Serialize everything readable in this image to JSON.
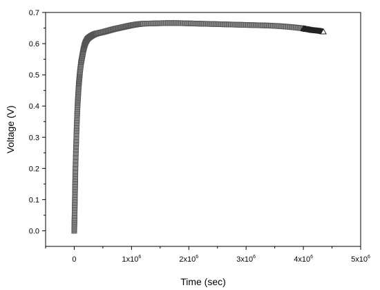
{
  "chart_data": {
    "type": "scatter",
    "xlabel": "Time (sec)",
    "ylabel": "Voltage (V)",
    "xlim": [
      -500000,
      5000000
    ],
    "ylim": [
      -0.05,
      0.7
    ],
    "x_ticks": [
      {
        "value": 0,
        "base": "0",
        "exp": ""
      },
      {
        "value": 1000000,
        "base": "1x10",
        "exp": "6"
      },
      {
        "value": 2000000,
        "base": "2x10",
        "exp": "6"
      },
      {
        "value": 3000000,
        "base": "3x10",
        "exp": "6"
      },
      {
        "value": 4000000,
        "base": "4x10",
        "exp": "6"
      },
      {
        "value": 5000000,
        "base": "5x10",
        "exp": "6"
      }
    ],
    "y_ticks": [
      {
        "value": 0.0,
        "label": "0.0"
      },
      {
        "value": 0.1,
        "label": "0.1"
      },
      {
        "value": 0.2,
        "label": "0.2"
      },
      {
        "value": 0.3,
        "label": "0.3"
      },
      {
        "value": 0.4,
        "label": "0.4"
      },
      {
        "value": 0.5,
        "label": "0.5"
      },
      {
        "value": 0.6,
        "label": "0.6"
      },
      {
        "value": 0.7,
        "label": "0.7"
      }
    ],
    "grid": false,
    "legend": "none",
    "marker_color": "#555555",
    "series": [
      {
        "marker": "square",
        "x": [
          0,
          5000,
          10000,
          15000,
          20000,
          30000,
          40000,
          50000,
          60000,
          70000,
          80000,
          90000,
          100000,
          120000,
          140000,
          160000,
          180000,
          200000,
          230000,
          260000,
          300000,
          350000,
          400000,
          500000,
          600000,
          700000,
          800000,
          900000,
          1000000,
          1100000,
          1200000,
          1400000,
          1600000,
          1800000,
          2000000,
          2200000,
          2400000,
          2600000,
          2800000,
          3000000,
          3200000,
          3400000,
          3600000,
          3800000,
          4000000
        ],
        "y": [
          0.0,
          0.04,
          0.09,
          0.14,
          0.19,
          0.26,
          0.32,
          0.37,
          0.41,
          0.44,
          0.47,
          0.49,
          0.51,
          0.54,
          0.56,
          0.58,
          0.595,
          0.605,
          0.615,
          0.62,
          0.625,
          0.63,
          0.633,
          0.637,
          0.642,
          0.647,
          0.651,
          0.655,
          0.659,
          0.662,
          0.664,
          0.665,
          0.666,
          0.666,
          0.665,
          0.664,
          0.663,
          0.662,
          0.661,
          0.66,
          0.659,
          0.658,
          0.656,
          0.653,
          0.649
        ]
      },
      {
        "marker": "triangle",
        "x": [
          4000000,
          4050000,
          4100000,
          4150000,
          4200000,
          4250000,
          4300000,
          4350000
        ],
        "y": [
          0.648,
          0.646,
          0.645,
          0.643,
          0.642,
          0.641,
          0.64,
          0.638
        ]
      }
    ]
  }
}
